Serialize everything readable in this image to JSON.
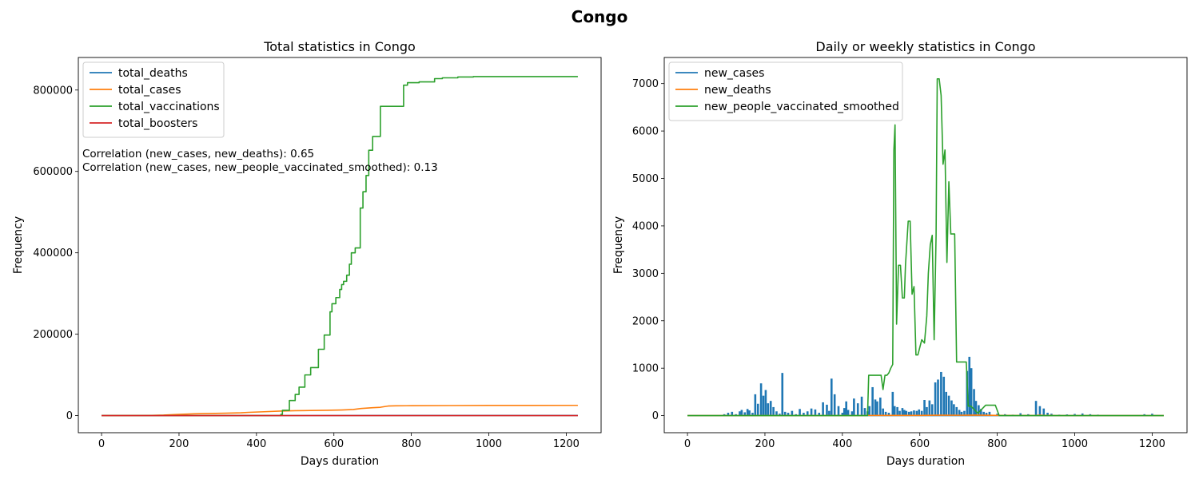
{
  "figure": {
    "suptitle": "Congo"
  },
  "colors": {
    "blue": "#1f77b4",
    "orange": "#ff7f0e",
    "green": "#2ca02c",
    "red": "#d62728"
  },
  "chart_data": [
    {
      "type": "line",
      "title": "Total statistics in Congo",
      "xlabel": "Days duration",
      "ylabel": "Frequency",
      "xlim": [
        -60,
        1290
      ],
      "ylim": [
        -42000,
        880000
      ],
      "xticks": [
        0,
        200,
        400,
        600,
        800,
        1000,
        1200
      ],
      "yticks": [
        0,
        200000,
        400000,
        600000,
        800000
      ],
      "legend_loc": "upper left",
      "annotations": [
        "Correlation (new_cases, new_deaths): 0.65",
        "Correlation (new_cases, new_people_vaccinated_smoothed): 0.13"
      ],
      "series": [
        {
          "name": "total_deaths",
          "color": "#1f77b4",
          "style": "line",
          "x": [
            0,
            1230
          ],
          "y": [
            0,
            385
          ]
        },
        {
          "name": "total_cases",
          "color": "#ff7f0e",
          "style": "line",
          "x": [
            0,
            60,
            120,
            160,
            200,
            240,
            280,
            320,
            360,
            380,
            420,
            460,
            500,
            540,
            580,
            620,
            650,
            670,
            700,
            720,
            740,
            760,
            800,
            900,
            1000,
            1100,
            1230
          ],
          "y": [
            0,
            150,
            400,
            1200,
            3000,
            4500,
            5300,
            6000,
            7000,
            8000,
            9500,
            11000,
            12000,
            12500,
            13000,
            13800,
            15000,
            17500,
            19500,
            20500,
            23500,
            24000,
            24300,
            24700,
            25000,
            25100,
            25200
          ]
        },
        {
          "name": "total_vaccinations",
          "color": "#2ca02c",
          "style": "step",
          "x": [
            0,
            463,
            467,
            485,
            500,
            510,
            525,
            540,
            560,
            575,
            590,
            595,
            605,
            615,
            620,
            625,
            633,
            640,
            645,
            655,
            668,
            675,
            683,
            690,
            700,
            720,
            753,
            780,
            790,
            820,
            860,
            880,
            920,
            960,
            1230
          ],
          "y": [
            0,
            3000,
            13000,
            37000,
            52000,
            70000,
            100000,
            118000,
            163000,
            198000,
            255000,
            275000,
            290000,
            310000,
            322000,
            330000,
            345000,
            372000,
            400000,
            412000,
            510000,
            550000,
            590000,
            652000,
            686000,
            760000,
            760000,
            812000,
            818000,
            820000,
            828000,
            830000,
            832000,
            833000,
            833000
          ]
        },
        {
          "name": "total_boosters",
          "color": "#d62728",
          "style": "line",
          "x": [
            0,
            1230
          ],
          "y": [
            0,
            0
          ]
        }
      ]
    },
    {
      "type": "line",
      "title": "Daily or weekly statistics in Congo",
      "xlabel": "Days duration",
      "ylabel": "Frequency",
      "xlim": [
        -60,
        1290
      ],
      "ylim": [
        -360,
        7550
      ],
      "xticks": [
        0,
        200,
        400,
        600,
        800,
        1000,
        1200
      ],
      "yticks": [
        0,
        1000,
        2000,
        3000,
        4000,
        5000,
        6000,
        7000
      ],
      "legend_loc": "upper left",
      "series": [
        {
          "name": "new_cases",
          "color": "#1f77b4",
          "style": "spikes",
          "x": [
            80,
            95,
            105,
            115,
            125,
            135,
            140,
            148,
            155,
            160,
            168,
            175,
            182,
            190,
            196,
            202,
            208,
            215,
            222,
            230,
            238,
            245,
            252,
            260,
            270,
            280,
            290,
            300,
            310,
            320,
            330,
            340,
            350,
            360,
            366,
            372,
            380,
            390,
            400,
            405,
            410,
            415,
            425,
            430,
            440,
            450,
            458,
            465,
            470,
            478,
            485,
            490,
            498,
            505,
            512,
            520,
            530,
            535,
            542,
            548,
            555,
            560,
            565,
            572,
            578,
            585,
            592,
            598,
            605,
            612,
            618,
            625,
            632,
            640,
            647,
            655,
            662,
            668,
            675,
            682,
            688,
            695,
            702,
            708,
            715,
            722,
            728,
            733,
            740,
            745,
            752,
            758,
            765,
            772,
            780,
            800,
            820,
            840,
            860,
            880,
            900,
            910,
            920,
            930,
            940,
            960,
            980,
            1000,
            1020,
            1040,
            1060,
            1180,
            1200
          ],
          "y": [
            10,
            30,
            60,
            80,
            30,
            90,
            120,
            70,
            140,
            110,
            60,
            450,
            250,
            680,
            420,
            540,
            260,
            310,
            180,
            90,
            40,
            900,
            80,
            60,
            100,
            30,
            140,
            60,
            90,
            150,
            130,
            60,
            280,
            230,
            100,
            780,
            450,
            200,
            60,
            160,
            300,
            120,
            90,
            360,
            260,
            400,
            160,
            90,
            200,
            600,
            340,
            300,
            380,
            150,
            80,
            60,
            500,
            200,
            180,
            100,
            160,
            120,
            100,
            80,
            90,
            110,
            100,
            130,
            100,
            330,
            180,
            320,
            240,
            700,
            760,
            920,
            820,
            500,
            420,
            320,
            240,
            180,
            120,
            80,
            100,
            940,
            1240,
            1000,
            560,
            310,
            220,
            140,
            80,
            60,
            80,
            40,
            30,
            20,
            50,
            30,
            310,
            200,
            150,
            60,
            40,
            20,
            25,
            35,
            45,
            30,
            20,
            30,
            40
          ]
        },
        {
          "name": "new_deaths",
          "color": "#ff7f0e",
          "style": "line",
          "x": [
            0,
            460,
            465,
            470,
            500,
            600,
            650,
            700,
            740,
            800,
            900,
            910,
            920,
            940,
            950,
            1230
          ],
          "y": [
            0,
            0,
            8,
            4,
            5,
            5,
            10,
            8,
            12,
            5,
            3,
            12,
            3,
            5,
            0,
            0
          ]
        },
        {
          "name": "new_people_vaccinated_smoothed",
          "color": "#2ca02c",
          "style": "line",
          "x": [
            0,
            465,
            468,
            500,
            505,
            510,
            515,
            520,
            525,
            530,
            533,
            536,
            540,
            545,
            550,
            555,
            560,
            563,
            570,
            575,
            580,
            585,
            590,
            595,
            605,
            612,
            618,
            622,
            627,
            632,
            637,
            642,
            645,
            650,
            655,
            660,
            665,
            670,
            675,
            680,
            685,
            690,
            695,
            700,
            705,
            712,
            720,
            725,
            728,
            732,
            750,
            770,
            777,
            785,
            795,
            805,
            815,
            830,
            845,
            860,
            865,
            875,
            890,
            905,
            915,
            925,
            935,
            945,
            1230
          ],
          "y": [
            0,
            0,
            850,
            850,
            550,
            850,
            850,
            900,
            1000,
            1080,
            5600,
            6130,
            1930,
            3170,
            3170,
            2480,
            2480,
            3180,
            4100,
            4100,
            2560,
            2720,
            1280,
            1280,
            1600,
            1530,
            2100,
            3000,
            3600,
            3800,
            1600,
            3800,
            7100,
            7100,
            6750,
            5300,
            5600,
            3230,
            4930,
            3830,
            3830,
            3830,
            1130,
            1130,
            1130,
            1130,
            1130,
            200,
            200,
            200,
            50,
            220,
            220,
            220,
            220,
            0,
            0,
            0,
            0,
            0,
            0,
            0,
            0,
            0,
            0,
            0,
            0,
            0,
            0
          ]
        }
      ]
    }
  ]
}
